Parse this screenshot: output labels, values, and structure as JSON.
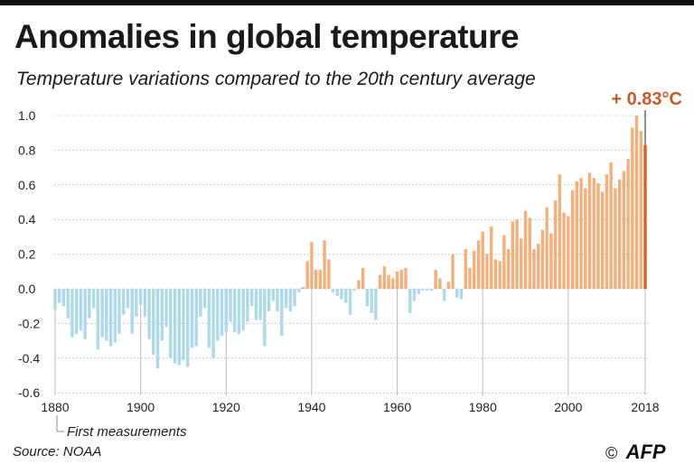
{
  "header": {
    "title": "Anomalies in global temperature",
    "subtitle": "Temperature variations compared to the 20th century average"
  },
  "footer": {
    "note": "First measurements",
    "source": "Source: NOAA",
    "logo_symbol": "©",
    "logo_text": "AFP"
  },
  "colors": {
    "negative": "#aed9e8",
    "positive": "#f2b07d",
    "highlight": "#cc6633",
    "annotation": "#c65a2c",
    "gridline": "#bbbbbb"
  },
  "chart_data": {
    "type": "bar",
    "title": "Anomalies in global temperature",
    "subtitle": "Temperature variations compared to the 20th century average",
    "xlabel": "",
    "ylabel": "",
    "ylim": [
      -0.6,
      1.0
    ],
    "yticks": [
      "1.0",
      "0.8",
      "0.6",
      "0.4",
      "0.2",
      "0.0",
      "-0.2",
      "-0.4",
      "-0.6"
    ],
    "ytick_values": [
      1.0,
      0.8,
      0.6,
      0.4,
      0.2,
      0.0,
      -0.2,
      -0.4,
      -0.6
    ],
    "xticks": [
      "1880",
      "1900",
      "1920",
      "1940",
      "1960",
      "1980",
      "2000",
      "2018"
    ],
    "xtick_values": [
      1880,
      1900,
      1920,
      1940,
      1960,
      1980,
      2000,
      2018
    ],
    "grid": true,
    "annotation": {
      "label": "+ 0.83°C",
      "year": 2018,
      "value": 0.83
    },
    "x_start": 1880,
    "values": [
      -0.12,
      -0.08,
      -0.1,
      -0.17,
      -0.28,
      -0.26,
      -0.24,
      -0.29,
      -0.17,
      -0.11,
      -0.35,
      -0.28,
      -0.3,
      -0.33,
      -0.31,
      -0.26,
      -0.15,
      -0.11,
      -0.26,
      -0.16,
      -0.09,
      -0.16,
      -0.29,
      -0.38,
      -0.46,
      -0.3,
      -0.22,
      -0.4,
      -0.43,
      -0.44,
      -0.41,
      -0.45,
      -0.34,
      -0.33,
      -0.16,
      -0.11,
      -0.34,
      -0.4,
      -0.3,
      -0.27,
      -0.25,
      -0.19,
      -0.25,
      -0.26,
      -0.24,
      -0.19,
      -0.1,
      -0.18,
      -0.18,
      -0.33,
      -0.13,
      -0.07,
      -0.13,
      -0.27,
      -0.11,
      -0.13,
      -0.1,
      -0.02,
      0.01,
      0.16,
      0.27,
      0.11,
      0.11,
      0.28,
      0.17,
      -0.02,
      -0.04,
      -0.06,
      -0.08,
      -0.15,
      -0.01,
      0.05,
      0.12,
      -0.1,
      -0.14,
      -0.18,
      0.08,
      0.13,
      0.08,
      0.06,
      0.1,
      0.11,
      0.12,
      -0.14,
      -0.07,
      -0.03,
      -0.01,
      -0.01,
      -0.01,
      0.11,
      0.06,
      -0.07,
      0.04,
      0.2,
      -0.05,
      -0.06,
      0.23,
      0.12,
      0.22,
      0.28,
      0.33,
      0.2,
      0.36,
      0.17,
      0.16,
      0.31,
      0.23,
      0.39,
      0.4,
      0.29,
      0.45,
      0.41,
      0.23,
      0.26,
      0.34,
      0.47,
      0.32,
      0.51,
      0.66,
      0.44,
      0.42,
      0.57,
      0.62,
      0.64,
      0.58,
      0.67,
      0.64,
      0.61,
      0.56,
      0.66,
      0.73,
      0.58,
      0.63,
      0.68,
      0.75,
      0.93,
      1.0,
      0.91,
      0.83
    ]
  }
}
